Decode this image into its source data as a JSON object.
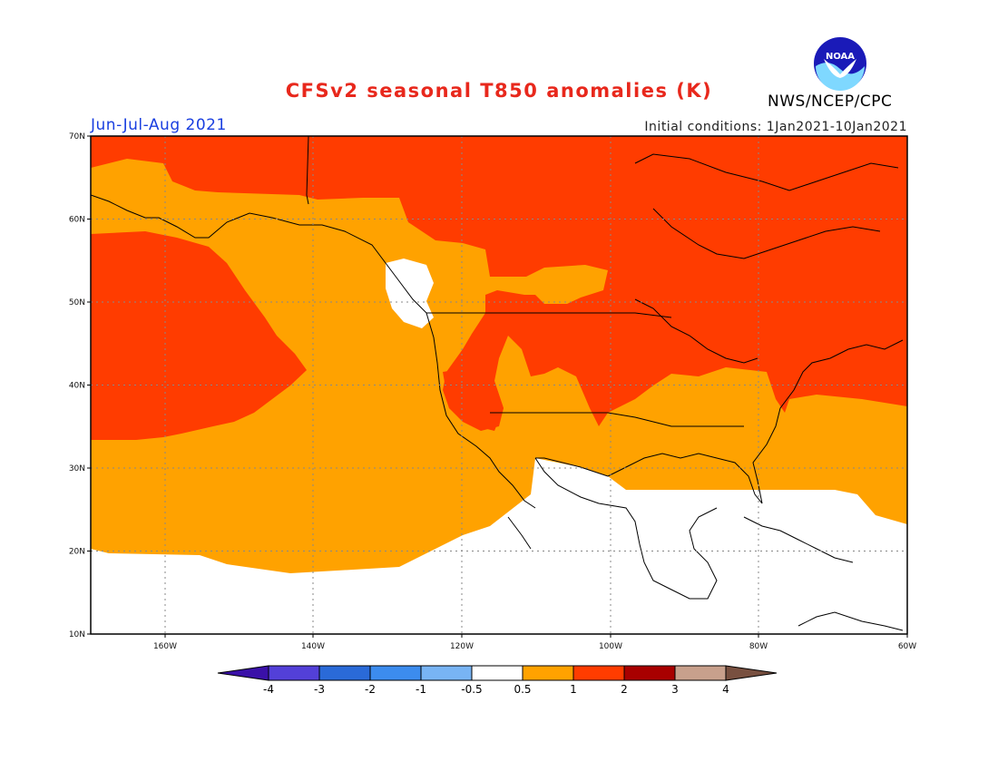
{
  "title": "CFSv2 seasonal T850 anomalies (K)",
  "season": "Jun-Jul-Aug 2021",
  "initial_conditions": "Initial conditions: 1Jan2021-10Jan2021",
  "agency": "NWS/NCEP/CPC",
  "logo_text": "NOAA",
  "map": {
    "lat_ticks": [
      "70N",
      "60N",
      "50N",
      "40N",
      "30N",
      "20N",
      "10N"
    ],
    "lon_ticks": [
      "160W",
      "140W",
      "120W",
      "100W",
      "80W",
      "60W"
    ]
  },
  "colorbar": {
    "labels": [
      "-4",
      "-3",
      "-2",
      "-1",
      "-0.5",
      "0.5",
      "1",
      "2",
      "3",
      "4"
    ],
    "colors": [
      "#3a10a8",
      "#5340d8",
      "#2a6ad8",
      "#3c8cee",
      "#78b4f4",
      "#ffffff",
      "#ffa200",
      "#ff3c00",
      "#a80000",
      "#c8a08c",
      "#785040"
    ]
  },
  "colors": {
    "anom_05_1": "#ffa200",
    "anom_1_2": "#ff3c00",
    "neutral": "#ffffff"
  }
}
